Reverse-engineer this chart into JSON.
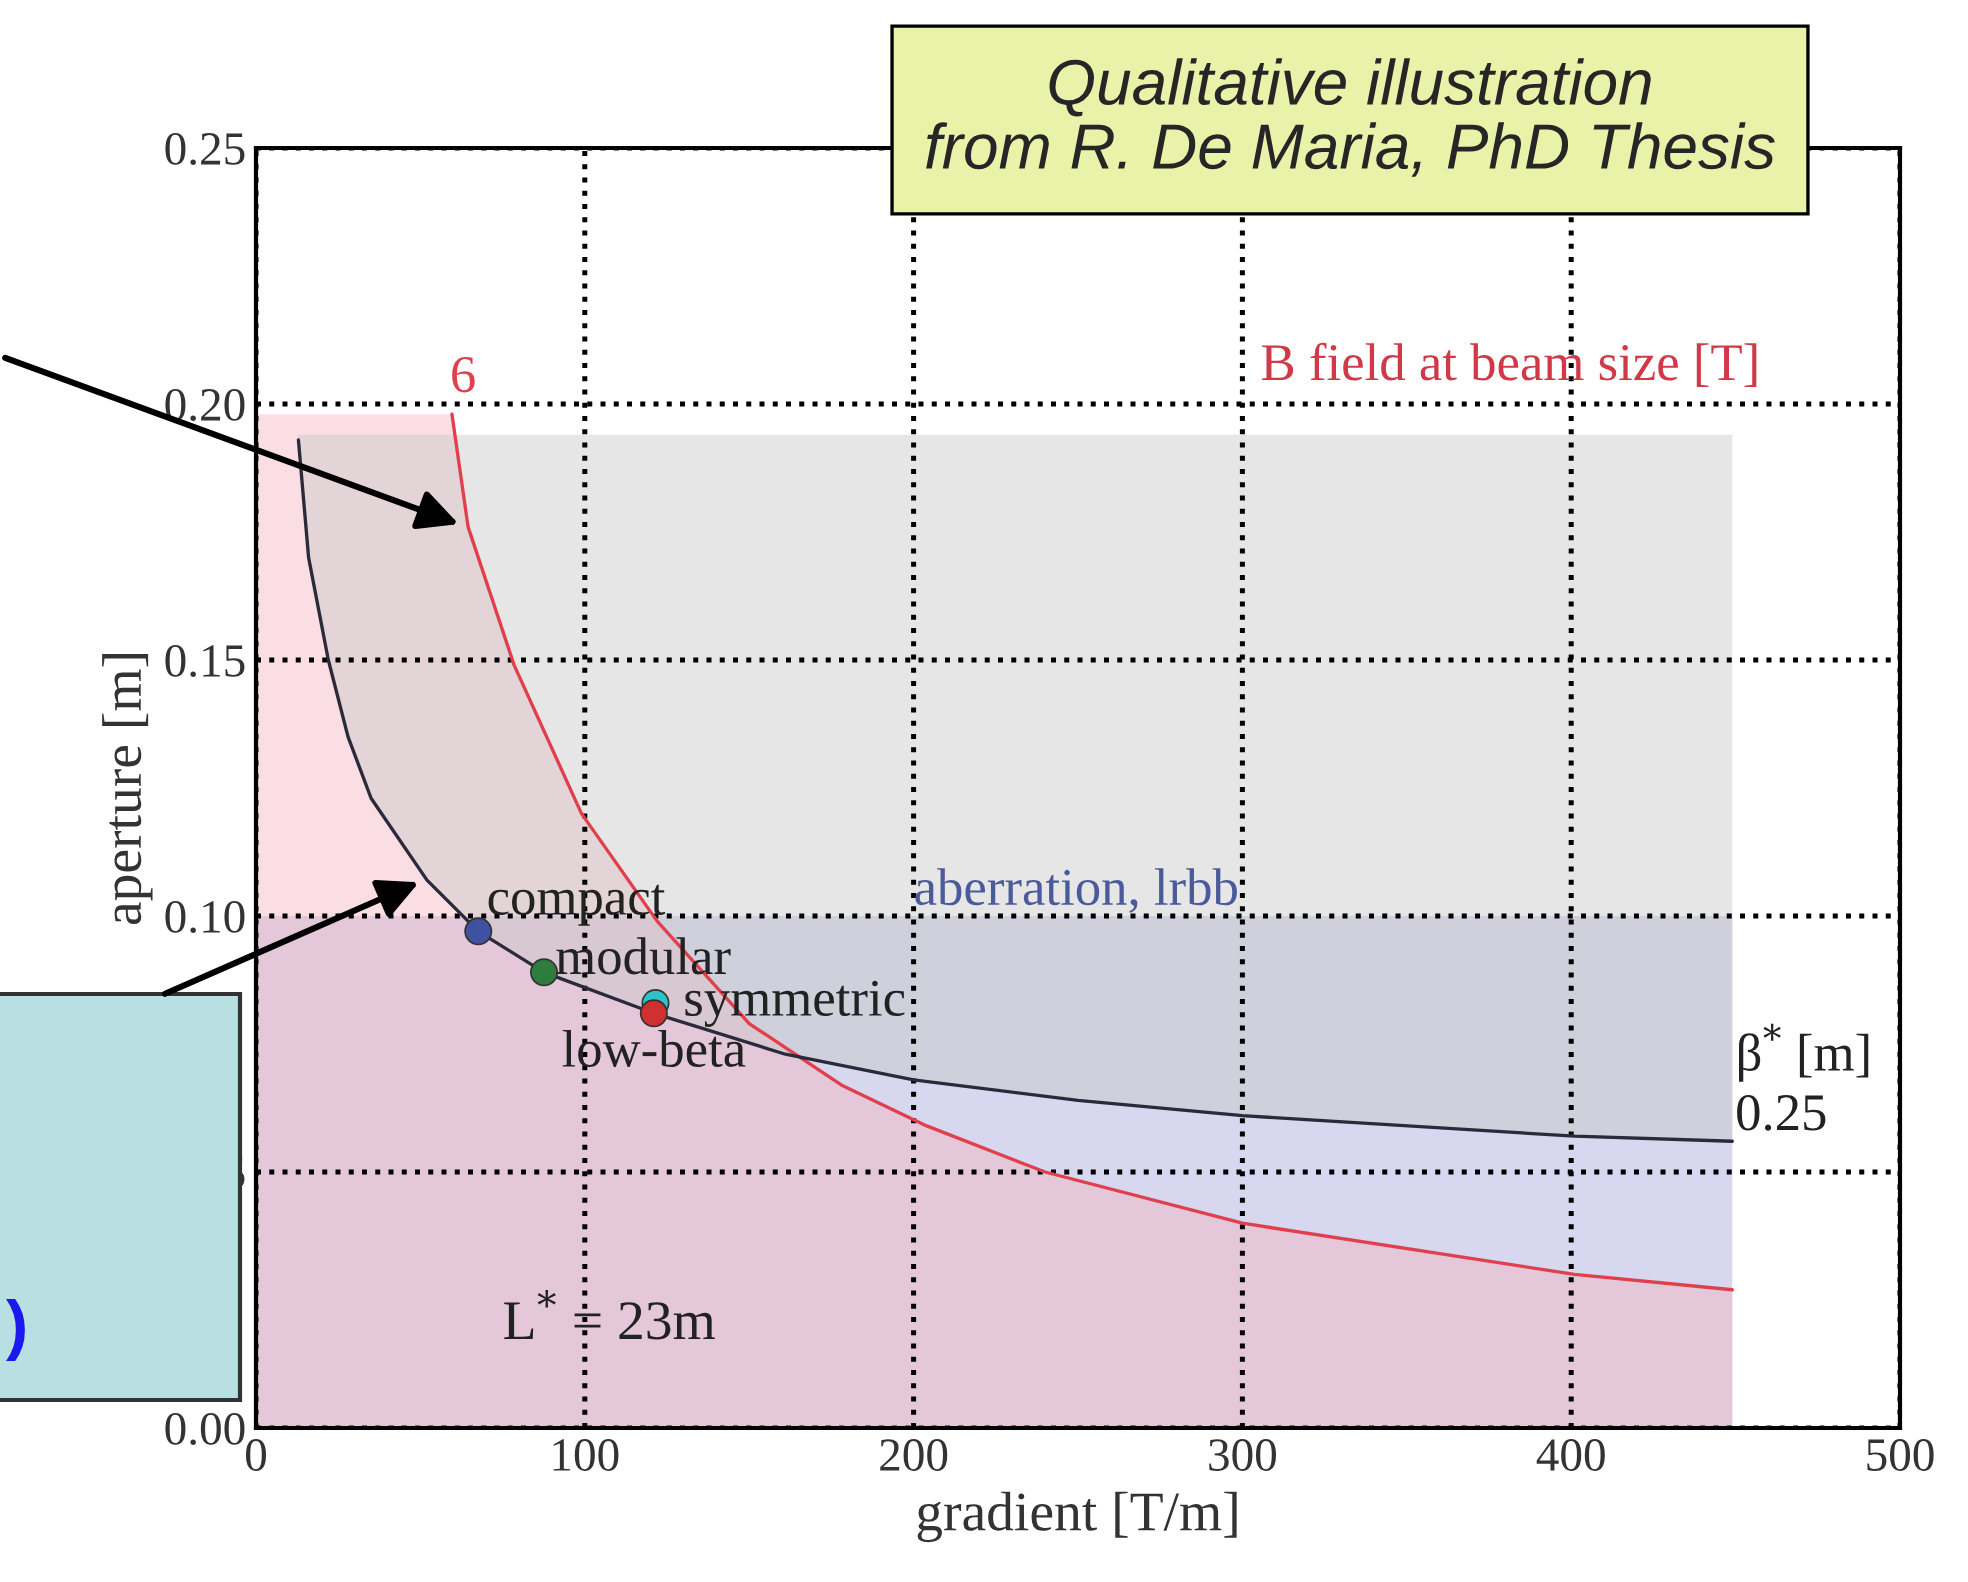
{
  "chart_data": {
    "type": "line",
    "xlabel": "gradient [T/m]",
    "ylabel": "aperture [m]",
    "xlim": [
      0,
      500
    ],
    "xticks": [
      0,
      100,
      200,
      300,
      400,
      500
    ],
    "ylim": [
      0,
      0.25
    ],
    "yticks": [
      {
        "value": 0,
        "label": "0.00"
      },
      0.05,
      {
        "value": 0.1,
        "label": "0.10"
      },
      0.15,
      {
        "value": 0.2,
        "label": "0.20"
      },
      0.25
    ],
    "grid": true,
    "line_style": "solid",
    "series": [
      {
        "name": "6",
        "type": "area",
        "color": "#e0404c",
        "x": [
          0,
          59.6,
          64.5,
          78.5,
          99,
          122,
          150,
          178,
          204,
          240,
          300,
          401,
          449
        ],
        "values": [
          0.198,
          0.198,
          0.176,
          0.149,
          0.12,
          0.099,
          0.079,
          0.067,
          0.059,
          0.05,
          0.04,
          0.03,
          0.027
        ]
      },
      {
        "name": "0.25",
        "color": "#2a2a3a",
        "x": [
          12.9,
          16,
          22,
          28,
          35,
          52,
          67.6,
          87.6,
          121,
          161,
          200,
          250,
          300,
          401,
          449
        ],
        "values": [
          0.193,
          0.17,
          0.15,
          0.135,
          0.123,
          0.107,
          0.097,
          0.089,
          0.081,
          0.073,
          0.068,
          0.064,
          0.061,
          0.057,
          0.056
        ],
        "lower": [
          0.193,
          0.17,
          0.15,
          0.135,
          0.123,
          0.107,
          0.097,
          0.089,
          0.081,
          0.073,
          0.068,
          0.064,
          0.061,
          0.057,
          0.056
        ],
        "upper": [
          0.194,
          0.194,
          0.194,
          0.194,
          0.194,
          0.194,
          0.194,
          0.194,
          0.194,
          0.194,
          0.194,
          0.194,
          0.194,
          0.194,
          0.194
        ]
      },
      {
        "type": "scatter",
        "marker": "circle",
        "x": [
          67.6,
          87.6,
          121.5,
          121
        ],
        "values": [
          0.097,
          0.089,
          0.083,
          0.081
        ],
        "colors": [
          "#3f51a0",
          "#2e7d3e",
          "#30c0c8",
          "#d03030"
        ]
      }
    ],
    "bands": [
      {
        "axis": "y",
        "from": 0,
        "to": 0.1,
        "label": "aberration, lrbb",
        "color": "#8c8cd0"
      }
    ],
    "annotations": [
      {
        "text": "compact",
        "x": 67.6,
        "y": 0.097
      },
      {
        "text": "modular",
        "x": 87.6,
        "y": 0.089
      },
      {
        "text": "symmetric",
        "x": 121.5,
        "y": 0.083
      },
      {
        "text": "low-beta",
        "x": 121,
        "y": 0.081
      },
      "B field at beam size [T]",
      "β$^{*}$ [m]",
      "L$^{*}$ = 23m",
      "Qualitative illustration\nfrom R. De Maria, PhD Thesis",
      ")"
    ]
  }
}
